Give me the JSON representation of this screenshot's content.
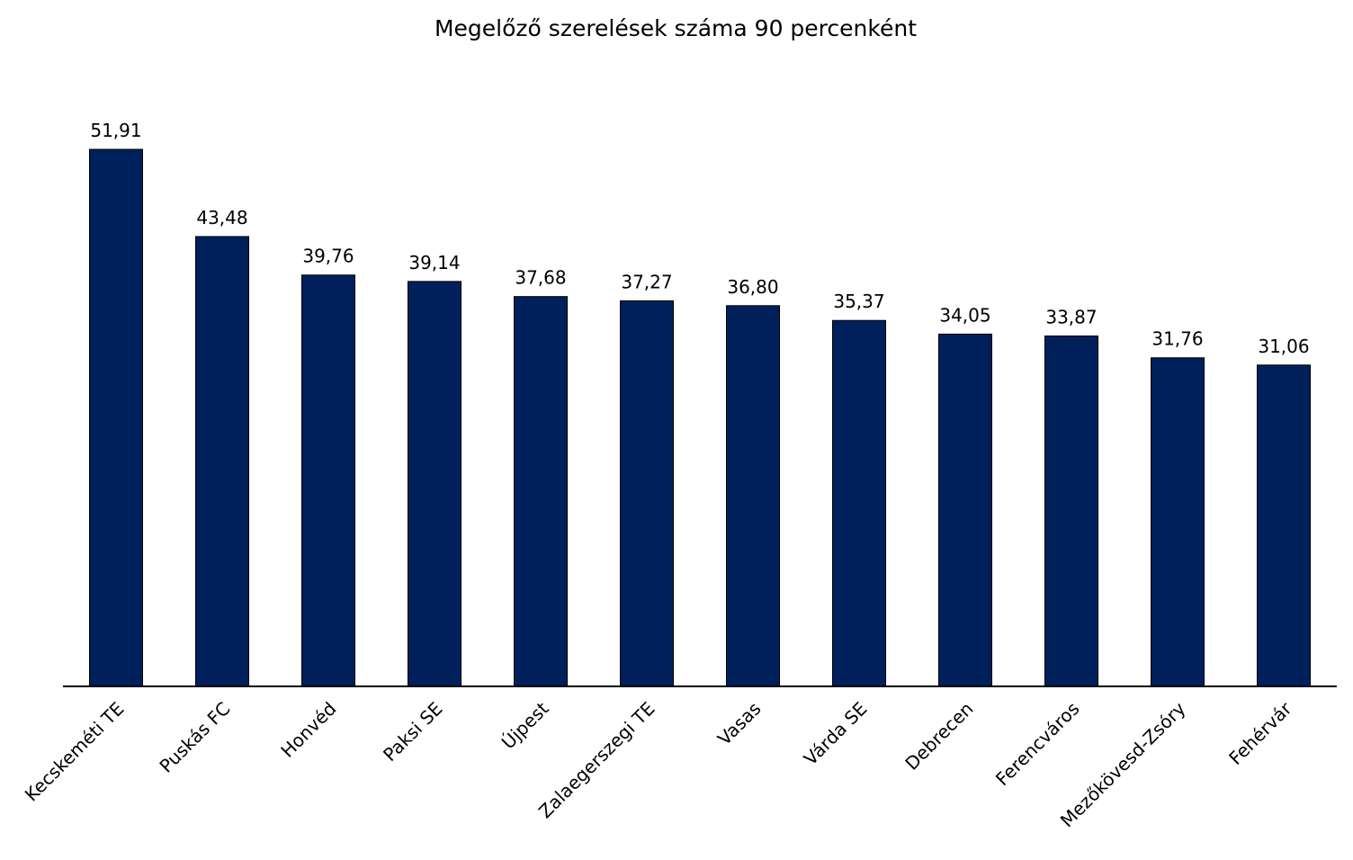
{
  "chart_data": {
    "type": "bar",
    "title": "Megelőző szerelések száma 90 percenként",
    "xlabel": "",
    "ylabel": "",
    "categories": [
      "Kecskeméti TE",
      "Puskás FC",
      "Honvéd",
      "Paksi SE",
      "Újpest",
      "Zalaegerszegi TE",
      "Vasas",
      "Várda SE",
      "Debrecen",
      "Ferencváros",
      "Mezőkövesd-Zsóry",
      "Fehérvár"
    ],
    "values": [
      51.91,
      43.48,
      39.76,
      39.14,
      37.68,
      37.27,
      36.8,
      35.37,
      34.05,
      33.87,
      31.76,
      31.06
    ],
    "value_labels": [
      "51,91",
      "43,48",
      "39,76",
      "39,14",
      "37,68",
      "37,27",
      "36,80",
      "35,37",
      "34,05",
      "33,87",
      "31,76",
      "31,06"
    ],
    "ylim": [
      0,
      51.91
    ],
    "grid": false,
    "legend": "none",
    "bar_color": "#00205b",
    "bar_stroke": "#000000",
    "axis_color": "#000000"
  }
}
